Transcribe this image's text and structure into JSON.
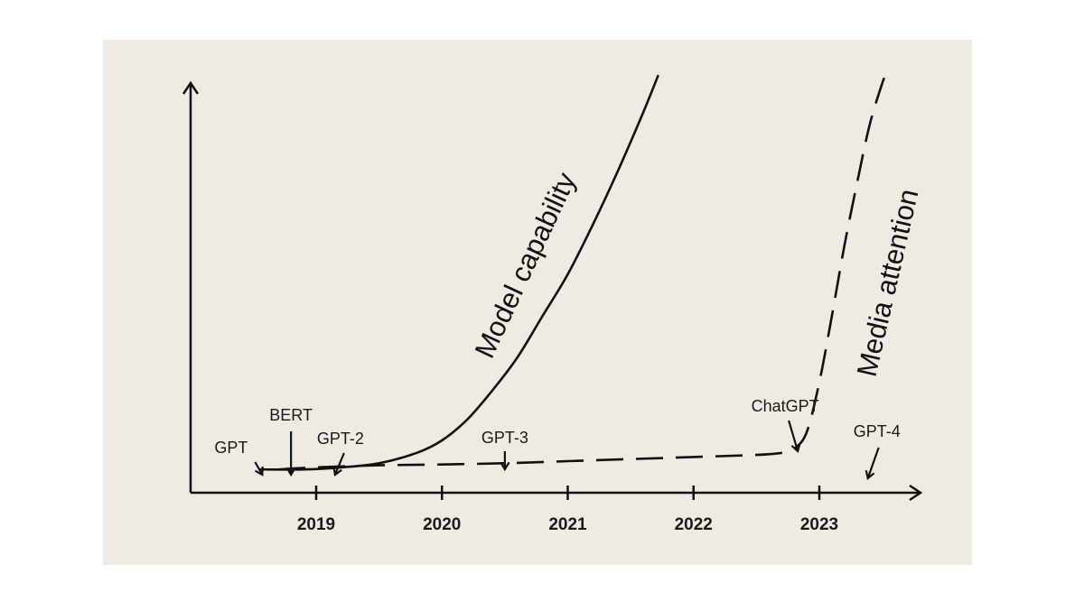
{
  "chart_data": {
    "type": "line",
    "background": "#efebe3",
    "ink": "#111111",
    "x_ticks": [
      "2019",
      "2020",
      "2021",
      "2022",
      "2023"
    ],
    "xlim": [
      2018,
      2023.8
    ],
    "ylim": [
      0,
      1
    ],
    "series": [
      {
        "name": "Model capability",
        "style": "solid",
        "x": [
          2018.55,
          2018.9,
          2019.2,
          2019.5,
          2019.8,
          2020.0,
          2020.2,
          2020.4,
          2020.6,
          2020.8,
          2021.0,
          2021.2,
          2021.4,
          2021.6,
          2021.72
        ],
        "y": [
          0.03,
          0.03,
          0.035,
          0.045,
          0.07,
          0.1,
          0.15,
          0.22,
          0.3,
          0.4,
          0.5,
          0.62,
          0.75,
          0.89,
          0.98
        ]
      },
      {
        "name": "Media attention",
        "style": "dashed",
        "x": [
          2018.7,
          2019.0,
          2019.5,
          2020.0,
          2020.5,
          2021.0,
          2021.5,
          2022.0,
          2022.5,
          2022.7,
          2022.8,
          2022.9,
          2023.0,
          2023.1,
          2023.2,
          2023.3,
          2023.4,
          2023.5,
          2023.55
        ],
        "y": [
          0.03,
          0.035,
          0.04,
          0.042,
          0.045,
          0.05,
          0.055,
          0.06,
          0.065,
          0.07,
          0.08,
          0.12,
          0.24,
          0.4,
          0.57,
          0.72,
          0.86,
          0.96,
          1.0
        ]
      }
    ],
    "annotations": [
      {
        "label": "GPT",
        "x": 2018.5
      },
      {
        "label": "BERT",
        "x": 2018.8
      },
      {
        "label": "GPT-2",
        "x": 2019.15
      },
      {
        "label": "GPT-3",
        "x": 2020.5
      },
      {
        "label": "ChatGPT",
        "x": 2022.8
      },
      {
        "label": "GPT-4",
        "x": 2023.4
      }
    ]
  }
}
